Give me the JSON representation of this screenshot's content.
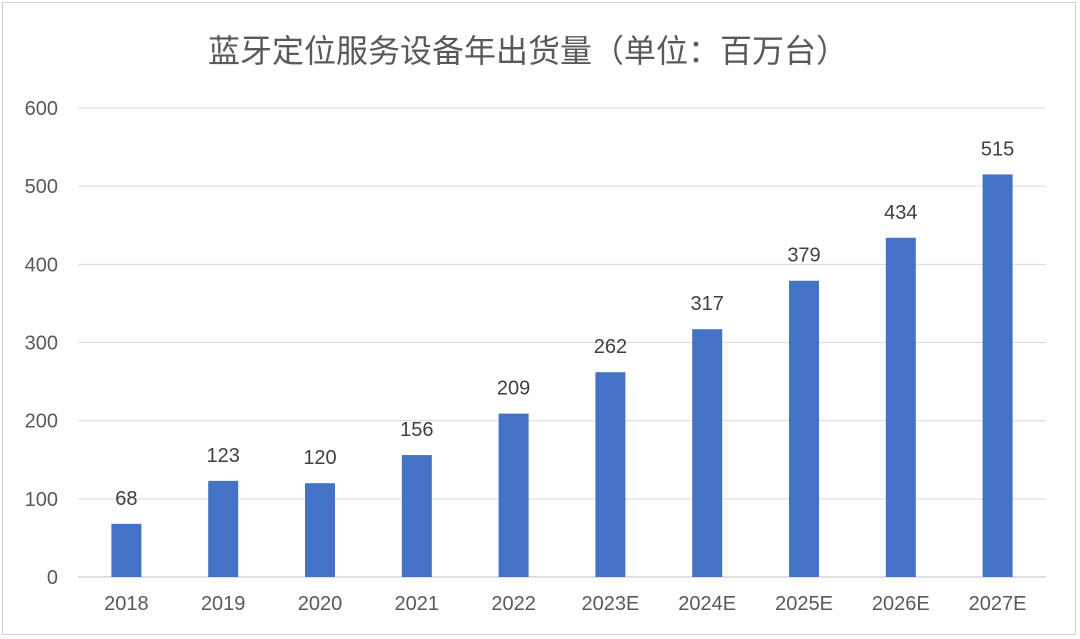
{
  "chart_data": {
    "type": "bar",
    "title": "蓝牙定位服务设备年出货量（单位：百万台）",
    "categories": [
      "2018",
      "2019",
      "2020",
      "2021",
      "2022",
      "2023E",
      "2024E",
      "2025E",
      "2026E",
      "2027E"
    ],
    "values": [
      68,
      123,
      120,
      156,
      209,
      262,
      317,
      379,
      434,
      515
    ],
    "y_ticks": [
      "0",
      "100",
      "200",
      "300",
      "400",
      "500",
      "600"
    ],
    "ylim": [
      0,
      600
    ],
    "xlabel": "",
    "ylabel": "",
    "grid": true,
    "legend": "none",
    "data_labels": true,
    "colors": {
      "bar": "#4472c4",
      "grid": "#d9d9d9",
      "text": "#595959"
    }
  }
}
